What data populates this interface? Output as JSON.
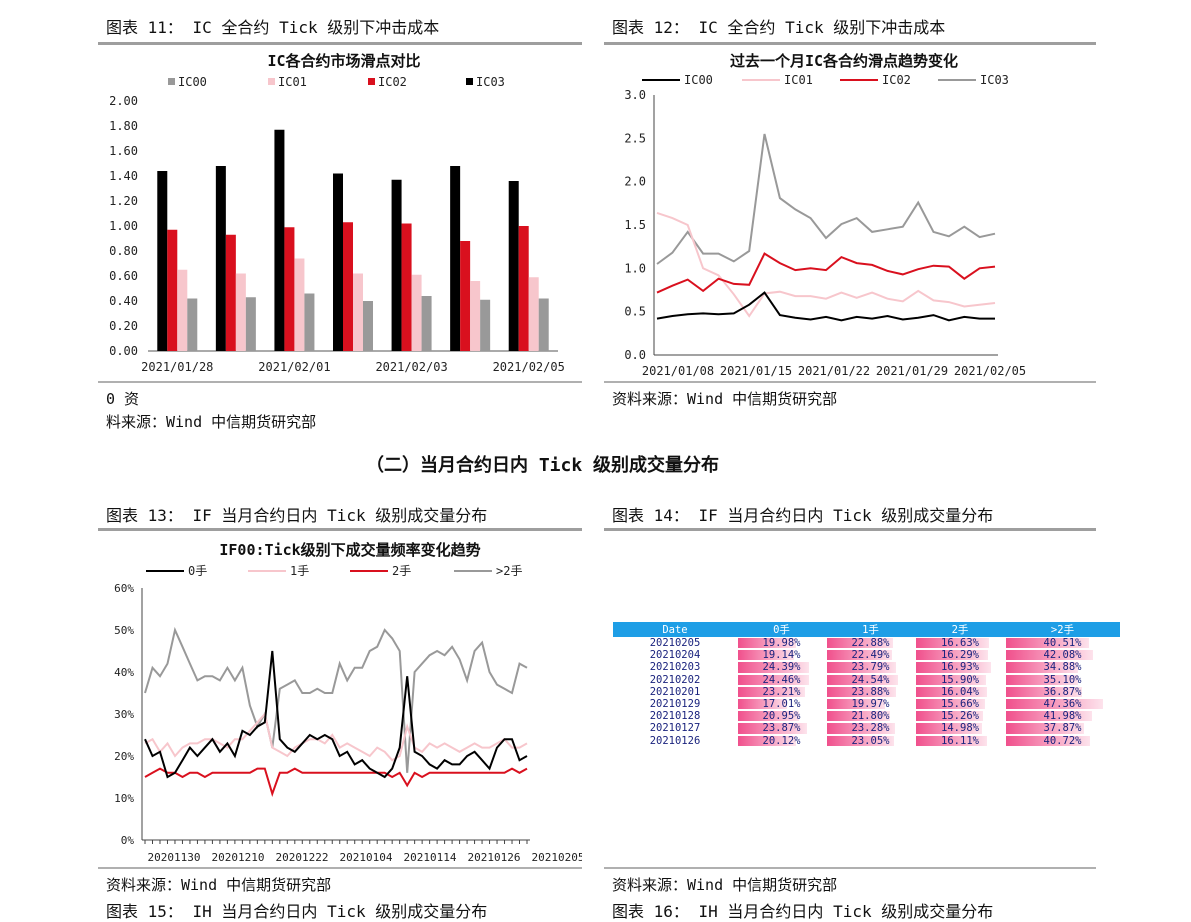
{
  "fig11": {
    "caption": "图表 11： IC 全合约 Tick 级别下冲击成本",
    "source_line1": "0 资",
    "source_line2": "料来源：Wind  中信期货研究部",
    "chart_data": {
      "type": "bar",
      "title": "IC各合约市场滑点对比",
      "categories": [
        "2021/01/28",
        "",
        "2021/02/01",
        "",
        "2021/02/03",
        "",
        "2021/02/05"
      ],
      "series": [
        {
          "name": "IC00",
          "color": "#999999",
          "values": [
            0.42,
            0.43,
            0.46,
            0.4,
            0.44,
            0.41,
            0.42
          ]
        },
        {
          "name": "IC01",
          "color": "#f7c6cc",
          "values": [
            0.65,
            0.62,
            0.74,
            0.62,
            0.61,
            0.56,
            0.59
          ]
        },
        {
          "name": "IC02",
          "color": "#d9101e",
          "values": [
            0.97,
            0.93,
            0.99,
            1.03,
            1.02,
            0.88,
            1.0
          ]
        },
        {
          "name": "IC03",
          "color": "#000000",
          "values": [
            1.44,
            1.48,
            1.77,
            1.42,
            1.37,
            1.48,
            1.36
          ]
        }
      ],
      "ylim": [
        0,
        2.0
      ],
      "yticks": [
        "0.00",
        "0.20",
        "0.40",
        "0.60",
        "0.80",
        "1.00",
        "1.20",
        "1.40",
        "1.60",
        "1.80",
        "2.00"
      ]
    }
  },
  "fig12": {
    "caption": "图表 12： IC 全合约 Tick 级别下冲击成本",
    "source": "资料来源：Wind  中信期货研究部",
    "chart_data": {
      "type": "line",
      "title": "过去一个月IC各合约滑点趋势变化",
      "x_labels": [
        "2021/01/08",
        "2021/01/15",
        "2021/01/22",
        "2021/01/29",
        "2021/02/05"
      ],
      "ylim": [
        0,
        3.0
      ],
      "yticks": [
        "0.0",
        "0.5",
        "1.0",
        "1.5",
        "2.0",
        "2.5",
        "3.0"
      ],
      "series": [
        {
          "name": "IC00",
          "color": "#000000",
          "values": [
            0.42,
            0.45,
            0.47,
            0.48,
            0.47,
            0.48,
            0.58,
            0.72,
            0.46,
            0.43,
            0.41,
            0.44,
            0.4,
            0.44,
            0.42,
            0.45,
            0.41,
            0.43,
            0.46,
            0.4,
            0.44,
            0.42,
            0.42
          ]
        },
        {
          "name": "IC01",
          "color": "#f7c6cc",
          "values": [
            1.64,
            1.58,
            1.5,
            1.0,
            0.92,
            0.7,
            0.45,
            0.71,
            0.73,
            0.68,
            0.68,
            0.65,
            0.72,
            0.66,
            0.72,
            0.65,
            0.62,
            0.74,
            0.63,
            0.61,
            0.56,
            0.58,
            0.6
          ]
        },
        {
          "name": "IC02",
          "color": "#d9101e",
          "values": [
            0.72,
            0.8,
            0.87,
            0.74,
            0.88,
            0.82,
            0.81,
            1.17,
            1.06,
            0.98,
            1.0,
            0.98,
            1.13,
            1.06,
            1.04,
            0.97,
            0.93,
            0.99,
            1.03,
            1.02,
            0.88,
            1.0,
            1.02
          ]
        },
        {
          "name": "IC03",
          "color": "#999999",
          "values": [
            1.05,
            1.18,
            1.42,
            1.17,
            1.17,
            1.08,
            1.2,
            2.55,
            1.81,
            1.68,
            1.58,
            1.35,
            1.51,
            1.58,
            1.42,
            1.45,
            1.48,
            1.76,
            1.42,
            1.37,
            1.48,
            1.36,
            1.4
          ]
        }
      ]
    }
  },
  "section_heading": "（二）当月合约日内 Tick 级别成交量分布",
  "fig13": {
    "caption": "图表 13： IF 当月合约日内 Tick 级别成交量分布",
    "source": "资料来源：Wind  中信期货研究部",
    "chart_data": {
      "type": "line",
      "title": "IF00:Tick级别下成交量频率变化趋势",
      "x_labels": [
        "20201130",
        "20201210",
        "20201222",
        "20210104",
        "20210114",
        "20210126",
        "20210205"
      ],
      "ylim": [
        0,
        60
      ],
      "yticks": [
        "0%",
        "10%",
        "20%",
        "30%",
        "40%",
        "50%",
        "60%"
      ],
      "series": [
        {
          "name": "0手",
          "color": "#000000",
          "values": [
            24,
            20,
            21,
            15,
            16,
            19,
            22,
            20,
            22,
            24,
            21,
            23,
            20,
            26,
            25,
            27,
            28,
            45,
            24,
            22,
            21,
            23,
            25,
            24,
            25,
            24,
            20,
            21,
            18,
            19,
            17,
            16,
            15,
            17,
            22,
            39,
            21,
            20,
            18,
            17,
            19,
            18,
            18,
            20,
            21,
            19,
            17,
            22,
            24,
            24,
            19,
            20
          ]
        },
        {
          "name": "1手",
          "color": "#f7c6cc",
          "values": [
            23,
            24,
            21,
            23,
            20,
            22,
            23,
            23,
            24,
            24,
            23,
            22,
            24,
            24,
            26,
            28,
            30,
            22,
            21,
            20,
            22,
            23,
            24,
            24,
            23,
            25,
            22,
            23,
            22,
            21,
            20,
            22,
            21,
            19,
            20,
            27,
            22,
            21,
            23,
            22,
            23,
            22,
            21,
            22,
            23,
            22,
            22,
            23,
            24,
            22,
            22,
            23
          ]
        },
        {
          "name": "2手",
          "color": "#d9101e",
          "values": [
            15,
            16,
            17,
            16,
            16,
            15,
            16,
            16,
            15,
            16,
            16,
            16,
            16,
            16,
            16,
            17,
            17,
            11,
            16,
            16,
            17,
            16,
            16,
            16,
            16,
            16,
            16,
            16,
            16,
            16,
            16,
            16,
            16,
            15,
            16,
            13,
            16,
            15,
            16,
            16,
            16,
            16,
            16,
            16,
            16,
            16,
            16,
            16,
            16,
            17,
            16,
            17
          ]
        },
        {
          "name": ">2手",
          "color": "#999999",
          "values": [
            35,
            41,
            39,
            42,
            50,
            46,
            42,
            38,
            39,
            39,
            38,
            41,
            38,
            41,
            32,
            27,
            30,
            22,
            36,
            37,
            38,
            35,
            35,
            36,
            35,
            35,
            42,
            38,
            41,
            41,
            45,
            46,
            50,
            48,
            45,
            16,
            40,
            42,
            44,
            45,
            44,
            46,
            43,
            38,
            45,
            47,
            40,
            37,
            36,
            35,
            42,
            41
          ]
        }
      ]
    }
  },
  "fig14": {
    "caption": "图表 14： IF 当月合约日内 Tick 级别成交量分布",
    "source": "资料来源：Wind  中信期货研究部",
    "table": {
      "headers": [
        "Date",
        "0手",
        "1手",
        "2手",
        ">2手"
      ],
      "rows": [
        {
          "date": "20210205",
          "v": [
            "19.98%",
            "22.88%",
            "16.63%",
            "40.51%"
          ],
          "n": [
            19.98,
            22.88,
            16.63,
            40.51
          ]
        },
        {
          "date": "20210204",
          "v": [
            "19.14%",
            "22.49%",
            "16.29%",
            "42.08%"
          ],
          "n": [
            19.14,
            22.49,
            16.29,
            42.08
          ]
        },
        {
          "date": "20210203",
          "v": [
            "24.39%",
            "23.79%",
            "16.93%",
            "34.88%"
          ],
          "n": [
            24.39,
            23.79,
            16.93,
            34.88
          ]
        },
        {
          "date": "20210202",
          "v": [
            "24.46%",
            "24.54%",
            "15.90%",
            "35.10%"
          ],
          "n": [
            24.46,
            24.54,
            15.9,
            35.1
          ]
        },
        {
          "date": "20210201",
          "v": [
            "23.21%",
            "23.88%",
            "16.04%",
            "36.87%"
          ],
          "n": [
            23.21,
            23.88,
            16.04,
            36.87
          ]
        },
        {
          "date": "20210129",
          "v": [
            "17.01%",
            "19.97%",
            "15.66%",
            "47.36%"
          ],
          "n": [
            17.01,
            19.97,
            15.66,
            47.36
          ]
        },
        {
          "date": "20210128",
          "v": [
            "20.95%",
            "21.80%",
            "15.26%",
            "41.98%"
          ],
          "n": [
            20.95,
            21.8,
            15.26,
            41.98
          ]
        },
        {
          "date": "20210127",
          "v": [
            "23.87%",
            "23.28%",
            "14.98%",
            "37.87%"
          ],
          "n": [
            23.87,
            23.28,
            14.98,
            37.87
          ]
        },
        {
          "date": "20210126",
          "v": [
            "20.12%",
            "23.05%",
            "16.11%",
            "40.72%"
          ],
          "n": [
            20.12,
            23.05,
            16.11,
            40.72
          ]
        }
      ]
    }
  },
  "fig15": {
    "caption": "图表 15： IH 当月合约日内 Tick 级别成交量分布"
  },
  "fig16": {
    "caption": "图表 16： IH 当月合约日内 Tick 级别成交量分布"
  }
}
